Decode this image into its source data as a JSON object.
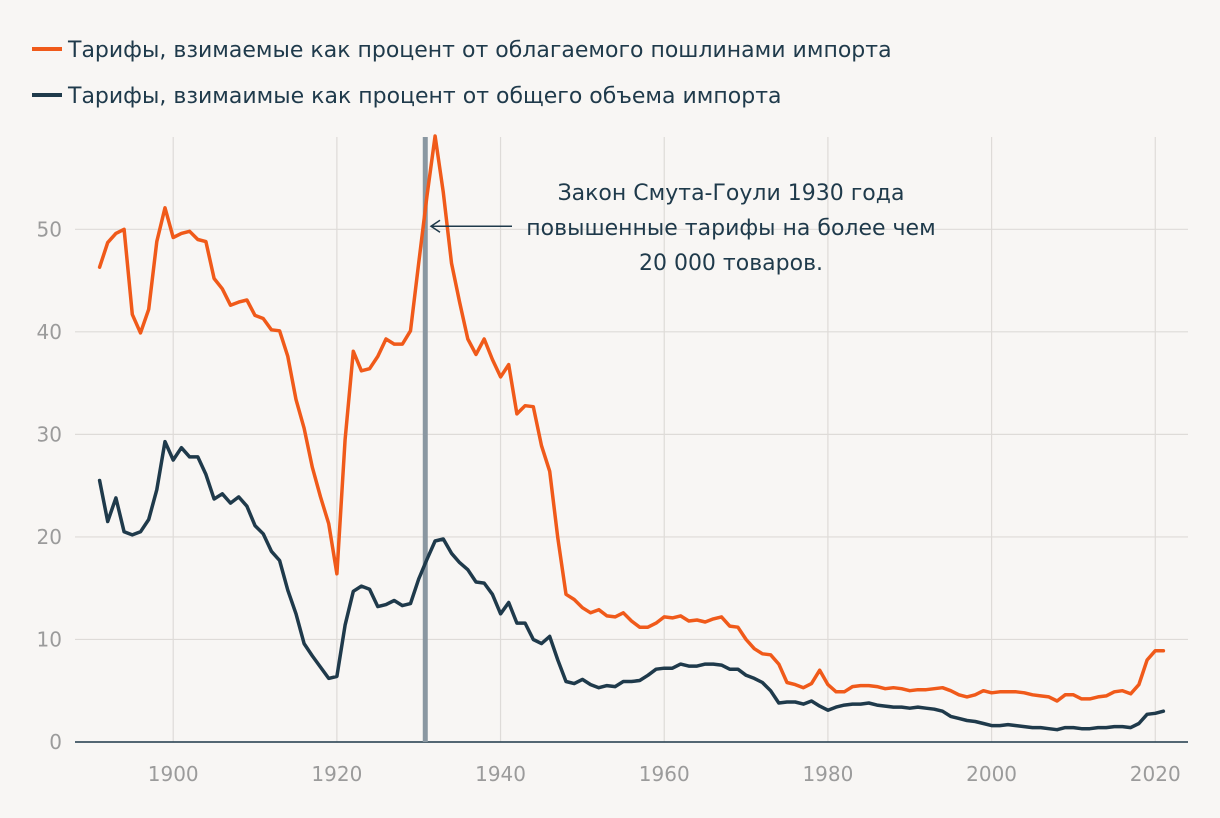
{
  "chart_data": {
    "type": "line",
    "title": "",
    "xlabel": "",
    "ylabel": "",
    "xlim": [
      1888,
      2024
    ],
    "ylim": [
      0,
      59
    ],
    "x_ticks": [
      1900,
      1920,
      1940,
      1960,
      1980,
      2000,
      2020
    ],
    "y_ticks": [
      0,
      10,
      20,
      30,
      40,
      50
    ],
    "grid": true,
    "legend_position": "top-left",
    "colors": {
      "dutiable": "#f05a1a",
      "total": "#1f3a4b",
      "marker": "#8a97a1"
    },
    "series": [
      {
        "name": "Тарифы, взимаемые как процент от облагаемого пошлинами импорта",
        "key": "dutiable",
        "x": [
          1891,
          1892,
          1893,
          1894,
          1895,
          1896,
          1897,
          1898,
          1899,
          1900,
          1901,
          1902,
          1903,
          1904,
          1905,
          1906,
          1907,
          1908,
          1909,
          1910,
          1911,
          1912,
          1913,
          1914,
          1915,
          1916,
          1917,
          1918,
          1919,
          1920,
          1921,
          1922,
          1923,
          1924,
          1925,
          1926,
          1927,
          1928,
          1929,
          1930,
          1931,
          1932,
          1933,
          1934,
          1935,
          1936,
          1937,
          1938,
          1939,
          1940,
          1941,
          1942,
          1943,
          1944,
          1945,
          1946,
          1947,
          1948,
          1949,
          1950,
          1951,
          1952,
          1953,
          1954,
          1955,
          1956,
          1957,
          1958,
          1959,
          1960,
          1961,
          1962,
          1963,
          1964,
          1965,
          1966,
          1967,
          1968,
          1969,
          1970,
          1971,
          1972,
          1973,
          1974,
          1975,
          1976,
          1977,
          1978,
          1979,
          1980,
          1981,
          1982,
          1983,
          1984,
          1985,
          1986,
          1987,
          1988,
          1989,
          1990,
          1991,
          1992,
          1993,
          1994,
          1995,
          1996,
          1997,
          1998,
          1999,
          2000,
          2001,
          2002,
          2003,
          2004,
          2005,
          2006,
          2007,
          2008,
          2009,
          2010,
          2011,
          2012,
          2013,
          2014,
          2015,
          2016,
          2017,
          2018,
          2019,
          2020,
          2021
        ],
        "values": [
          46.3,
          48.7,
          49.6,
          50.0,
          41.7,
          39.9,
          42.2,
          48.8,
          52.1,
          49.2,
          49.6,
          49.8,
          49.0,
          48.8,
          45.2,
          44.2,
          42.6,
          42.9,
          43.1,
          41.6,
          41.3,
          40.2,
          40.1,
          37.6,
          33.4,
          30.6,
          26.8,
          23.9,
          21.3,
          16.4,
          29.5,
          38.1,
          36.2,
          36.4,
          37.6,
          39.3,
          38.8,
          38.8,
          40.1,
          46.7,
          53.2,
          59.1,
          53.6,
          46.7,
          42.9,
          39.3,
          37.8,
          39.3,
          37.3,
          35.6,
          36.8,
          32.0,
          32.8,
          32.7,
          28.9,
          26.4,
          19.9,
          14.4,
          13.9,
          13.1,
          12.6,
          12.9,
          12.3,
          12.2,
          12.6,
          11.8,
          11.2,
          11.2,
          11.6,
          12.2,
          12.1,
          12.3,
          11.8,
          11.9,
          11.7,
          12.0,
          12.2,
          11.3,
          11.2,
          10.0,
          9.1,
          8.6,
          8.5,
          7.6,
          5.8,
          5.6,
          5.3,
          5.7,
          7.0,
          5.6,
          4.9,
          4.9,
          5.4,
          5.5,
          5.5,
          5.4,
          5.2,
          5.3,
          5.2,
          5.0,
          5.1,
          5.1,
          5.2,
          5.3,
          5.0,
          4.6,
          4.4,
          4.6,
          5.0,
          4.8,
          4.9,
          4.9,
          4.9,
          4.8,
          4.6,
          4.5,
          4.4,
          4.0,
          4.6,
          4.6,
          4.2,
          4.2,
          4.4,
          4.5,
          4.9,
          5.0,
          4.7,
          5.6,
          8.0,
          8.9,
          8.9
        ]
      },
      {
        "name": "Тарифы, взимаимые как процент от общего объема импорта",
        "key": "total",
        "x": [
          1891,
          1892,
          1893,
          1894,
          1895,
          1896,
          1897,
          1898,
          1899,
          1900,
          1901,
          1902,
          1903,
          1904,
          1905,
          1906,
          1907,
          1908,
          1909,
          1910,
          1911,
          1912,
          1913,
          1914,
          1915,
          1916,
          1917,
          1918,
          1919,
          1920,
          1921,
          1922,
          1923,
          1924,
          1925,
          1926,
          1927,
          1928,
          1929,
          1930,
          1931,
          1932,
          1933,
          1934,
          1935,
          1936,
          1937,
          1938,
          1939,
          1940,
          1941,
          1942,
          1943,
          1944,
          1945,
          1946,
          1947,
          1948,
          1949,
          1950,
          1951,
          1952,
          1953,
          1954,
          1955,
          1956,
          1957,
          1958,
          1959,
          1960,
          1961,
          1962,
          1963,
          1964,
          1965,
          1966,
          1967,
          1968,
          1969,
          1970,
          1971,
          1972,
          1973,
          1974,
          1975,
          1976,
          1977,
          1978,
          1979,
          1980,
          1981,
          1982,
          1983,
          1984,
          1985,
          1986,
          1987,
          1988,
          1989,
          1990,
          1991,
          1992,
          1993,
          1994,
          1995,
          1996,
          1997,
          1998,
          1999,
          2000,
          2001,
          2002,
          2003,
          2004,
          2005,
          2006,
          2007,
          2008,
          2009,
          2010,
          2011,
          2012,
          2013,
          2014,
          2015,
          2016,
          2017,
          2018,
          2019,
          2020,
          2021
        ],
        "values": [
          25.5,
          21.5,
          23.8,
          20.5,
          20.2,
          20.5,
          21.7,
          24.6,
          29.3,
          27.5,
          28.7,
          27.8,
          27.8,
          26.1,
          23.7,
          24.2,
          23.3,
          23.9,
          23.0,
          21.1,
          20.3,
          18.6,
          17.7,
          14.8,
          12.5,
          9.6,
          8.4,
          7.3,
          6.2,
          6.4,
          11.4,
          14.7,
          15.2,
          14.9,
          13.2,
          13.4,
          13.8,
          13.3,
          13.5,
          15.9,
          17.8,
          19.6,
          19.8,
          18.4,
          17.5,
          16.8,
          15.6,
          15.5,
          14.4,
          12.5,
          13.6,
          11.6,
          11.6,
          10.0,
          9.6,
          10.3,
          8.0,
          5.9,
          5.7,
          6.1,
          5.6,
          5.3,
          5.5,
          5.4,
          5.9,
          5.9,
          6.0,
          6.5,
          7.1,
          7.2,
          7.2,
          7.6,
          7.4,
          7.4,
          7.6,
          7.6,
          7.5,
          7.1,
          7.1,
          6.5,
          6.2,
          5.8,
          5.0,
          3.8,
          3.9,
          3.9,
          3.7,
          4.0,
          3.5,
          3.1,
          3.4,
          3.6,
          3.7,
          3.7,
          3.8,
          3.6,
          3.5,
          3.4,
          3.4,
          3.3,
          3.4,
          3.3,
          3.2,
          3.0,
          2.5,
          2.3,
          2.1,
          2.0,
          1.8,
          1.6,
          1.6,
          1.7,
          1.6,
          1.5,
          1.4,
          1.4,
          1.3,
          1.2,
          1.4,
          1.4,
          1.3,
          1.3,
          1.4,
          1.4,
          1.5,
          1.5,
          1.4,
          1.8,
          2.7,
          2.8,
          3.0
        ]
      }
    ],
    "marker": {
      "x": 1930.8
    },
    "annotation": {
      "x": 1931.5,
      "y": 50.3,
      "lines": [
        "Закон Смута-Гоули 1930 года",
        "повышенные тарифы на более чем",
        "20 000 товаров."
      ]
    }
  }
}
